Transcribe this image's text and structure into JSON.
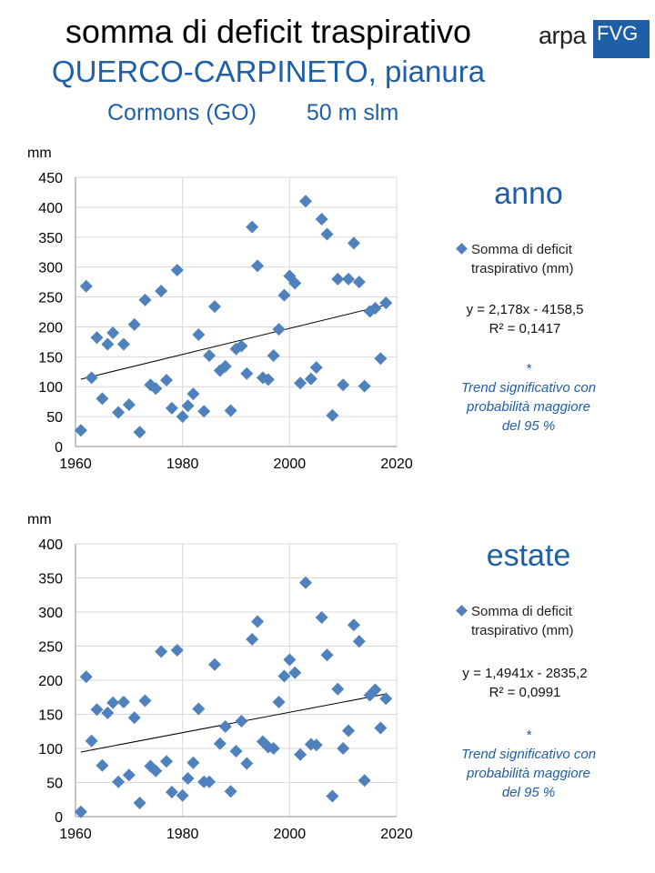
{
  "title": "somma di deficit traspirativo",
  "subtitle": "QUERCO-CARPINETO, pianura",
  "location": "Cormons (GO)",
  "altitude": "50 m slm",
  "logo": {
    "arpa": "arpa",
    "fvg": "FVG"
  },
  "colors": {
    "accent": "#1f5fa8",
    "marker": "#4f81bd",
    "grid": "#d9d9d9"
  },
  "chart_data": [
    {
      "type": "scatter",
      "label": "anno",
      "ylabel": "mm",
      "xlim": [
        1960,
        2020
      ],
      "ylim": [
        0,
        450
      ],
      "xticks": [
        1960,
        1980,
        2000,
        2020
      ],
      "yticks": [
        0,
        50,
        100,
        150,
        200,
        250,
        300,
        350,
        400,
        450
      ],
      "grid": true,
      "series": [
        {
          "name": "Somma di deficit traspirativo (mm)",
          "x": [
            1961,
            1962,
            1963,
            1964,
            1965,
            1966,
            1967,
            1968,
            1969,
            1970,
            1971,
            1972,
            1973,
            1974,
            1975,
            1976,
            1977,
            1978,
            1979,
            1980,
            1981,
            1982,
            1983,
            1984,
            1985,
            1986,
            1987,
            1988,
            1989,
            1990,
            1991,
            1992,
            1993,
            1994,
            1995,
            1996,
            1997,
            1998,
            1999,
            2000,
            2001,
            2002,
            2003,
            2004,
            2005,
            2006,
            2007,
            2008,
            2009,
            2010,
            2011,
            2012,
            2013,
            2014,
            2015,
            2016,
            2017,
            2018
          ],
          "y": [
            27,
            268,
            115,
            182,
            80,
            171,
            190,
            57,
            171,
            70,
            204,
            24,
            245,
            103,
            97,
            260,
            111,
            64,
            295,
            50,
            68,
            88,
            187,
            59,
            152,
            234,
            127,
            134,
            60,
            163,
            168,
            122,
            367,
            302,
            115,
            112,
            152,
            196,
            253,
            285,
            273,
            106,
            410,
            113,
            132,
            380,
            355,
            52,
            280,
            103,
            280,
            340,
            275,
            101,
            226,
            231,
            147,
            240
          ]
        }
      ],
      "trendline": {
        "slope": 2.178,
        "intercept": -4158.5
      },
      "legend_line1": "Somma di deficit",
      "legend_line2": "traspirativo (mm)",
      "equation": "y = 2,178x - 4158,5",
      "r2": "R² = 0,1417",
      "note_star": "*",
      "note_lines": [
        "Trend significativo con",
        "probabilità maggiore",
        "del 95 %"
      ]
    },
    {
      "type": "scatter",
      "label": "estate",
      "ylabel": "mm",
      "xlim": [
        1960,
        2020
      ],
      "ylim": [
        0,
        400
      ],
      "xticks": [
        1960,
        1980,
        2000,
        2020
      ],
      "yticks": [
        0,
        50,
        100,
        150,
        200,
        250,
        300,
        350,
        400
      ],
      "grid": true,
      "series": [
        {
          "name": "Somma di deficit traspirativo (mm)",
          "x": [
            1961,
            1962,
            1963,
            1964,
            1965,
            1966,
            1967,
            1968,
            1969,
            1970,
            1971,
            1972,
            1973,
            1974,
            1975,
            1976,
            1977,
            1978,
            1979,
            1980,
            1981,
            1982,
            1983,
            1984,
            1985,
            1986,
            1987,
            1988,
            1989,
            1990,
            1991,
            1992,
            1993,
            1994,
            1995,
            1996,
            1997,
            1998,
            1999,
            2000,
            2001,
            2002,
            2003,
            2004,
            2005,
            2006,
            2007,
            2008,
            2009,
            2010,
            2011,
            2012,
            2013,
            2014,
            2015,
            2016,
            2017,
            2018
          ],
          "y": [
            7,
            205,
            111,
            157,
            75,
            152,
            167,
            51,
            168,
            61,
            145,
            20,
            170,
            74,
            67,
            242,
            81,
            36,
            244,
            31,
            56,
            79,
            158,
            51,
            51,
            223,
            107,
            132,
            37,
            96,
            140,
            78,
            260,
            286,
            110,
            102,
            100,
            168,
            206,
            230,
            211,
            91,
            343,
            106,
            105,
            292,
            237,
            30,
            187,
            100,
            126,
            281,
            257,
            53,
            178,
            186,
            130,
            173
          ]
        }
      ],
      "trendline": {
        "slope": 1.4941,
        "intercept": -2835.2
      },
      "legend_line1": "Somma di deficit",
      "legend_line2": "traspirativo (mm)",
      "equation": "y = 1,4941x - 2835,2",
      "r2": "R² = 0,0991",
      "note_star": "*",
      "note_lines": [
        "Trend significativo con",
        "probabilità maggiore",
        "del 95 %"
      ]
    }
  ]
}
